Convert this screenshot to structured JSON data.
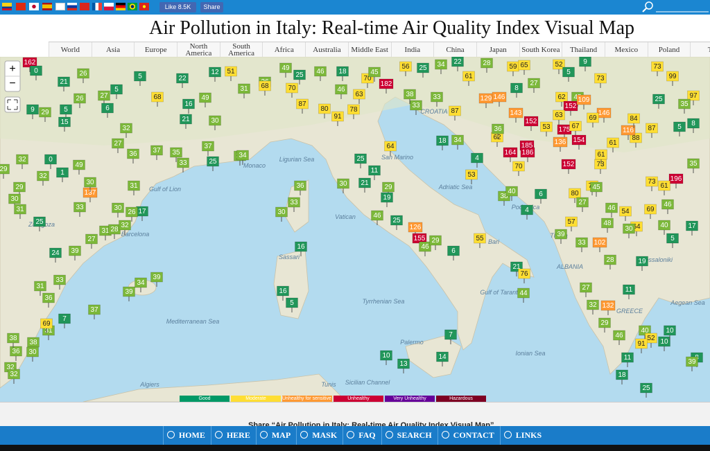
{
  "header": {
    "like": "Like 8.5K",
    "share": "Share"
  },
  "title": "Air Pollution in Italy: Real-time Air Quality Index Visual Map",
  "tabs": [
    "World",
    "Asia",
    "Europe",
    "North America",
    "South America",
    "Africa",
    "Australia",
    "Middle East",
    "India",
    "China",
    "Japan",
    "South Korea",
    "Thailand",
    "Mexico",
    "Poland",
    "Tu"
  ],
  "map": {
    "labels": [
      "Gulf of Lion",
      "Monaco",
      "Ligurian Sea",
      "San Marino",
      "Adriatic Sea",
      "Vatican",
      "Sassari",
      "Tyrrhenian Sea",
      "Mediterranean Sea",
      "Palermo",
      "Algiers",
      "Tunis",
      "Sicilian Channel",
      "Gulf of Taranto",
      "Ionian Sea",
      "Bari",
      "Podgorica",
      "Tirana",
      "ALBANIA",
      "GREECE",
      "Thessaloniki",
      "Aegean Sea",
      "CROATIA",
      "Barcelona",
      "Zaragoza"
    ],
    "markers": [
      162,
      0,
      26,
      5,
      21,
      22,
      12,
      51,
      26,
      49,
      25,
      46,
      18,
      70,
      45,
      182,
      56,
      25,
      34,
      22,
      61,
      28,
      59,
      65,
      52,
      5,
      9,
      73,
      73,
      99,
      97,
      27,
      26,
      5,
      6,
      9,
      29,
      5,
      15,
      32,
      16,
      49,
      21,
      30,
      31,
      68,
      70,
      87,
      80,
      91,
      78,
      46,
      63,
      38,
      33,
      33,
      87,
      129,
      146,
      8,
      27,
      62,
      45,
      152,
      109,
      146,
      69,
      63,
      143,
      152,
      53,
      175,
      67,
      154,
      136,
      185,
      186,
      164,
      70,
      62,
      36,
      4,
      34,
      18,
      64,
      25,
      11,
      30,
      21,
      29,
      19,
      46,
      25,
      126,
      155,
      46,
      29,
      6,
      55,
      21,
      76,
      44,
      36,
      33,
      30,
      16,
      16,
      5,
      7,
      10,
      13,
      14,
      39,
      34,
      39,
      37,
      7,
      36,
      31,
      33,
      24,
      39,
      27,
      31,
      28,
      32,
      17,
      26,
      30,
      33,
      137,
      30,
      32,
      0,
      1,
      49,
      29,
      29,
      30,
      31,
      25,
      32,
      27,
      36,
      37,
      35,
      33,
      37,
      36,
      25,
      34,
      31,
      68,
      35,
      196,
      61,
      73,
      46,
      69,
      54,
      64,
      40,
      17,
      5,
      30,
      102,
      80,
      74,
      45,
      46,
      48,
      27,
      57,
      27,
      32,
      11,
      132,
      29,
      46,
      40,
      52,
      91,
      10,
      10,
      11,
      18,
      25,
      8,
      39,
      32,
      32,
      38,
      36,
      30,
      38,
      31,
      69,
      19,
      28,
      33,
      39,
      6,
      4,
      38,
      40,
      53,
      88,
      73,
      152,
      61,
      61,
      5,
      8,
      87,
      116,
      84,
      25,
      35
    ]
  },
  "legend": [
    {
      "label": "Good",
      "color": "#009966"
    },
    {
      "label": "Moderate",
      "color": "#ffde33"
    },
    {
      "label": "Unhealthy for sensitive groups",
      "color": "#ff9933"
    },
    {
      "label": "Unhealthy",
      "color": "#cc0033"
    },
    {
      "label": "Very Unhealthy",
      "color": "#660099"
    },
    {
      "label": "Hazardous",
      "color": "#7e0023"
    }
  ],
  "share_text": "Share “Air Pollution in Italy: Real-time Air Quality Index Visual Map”",
  "nav": [
    "HOME",
    "HERE",
    "MAP",
    "MASK",
    "FAQ",
    "SEARCH",
    "CONTACT",
    "LINKS"
  ]
}
